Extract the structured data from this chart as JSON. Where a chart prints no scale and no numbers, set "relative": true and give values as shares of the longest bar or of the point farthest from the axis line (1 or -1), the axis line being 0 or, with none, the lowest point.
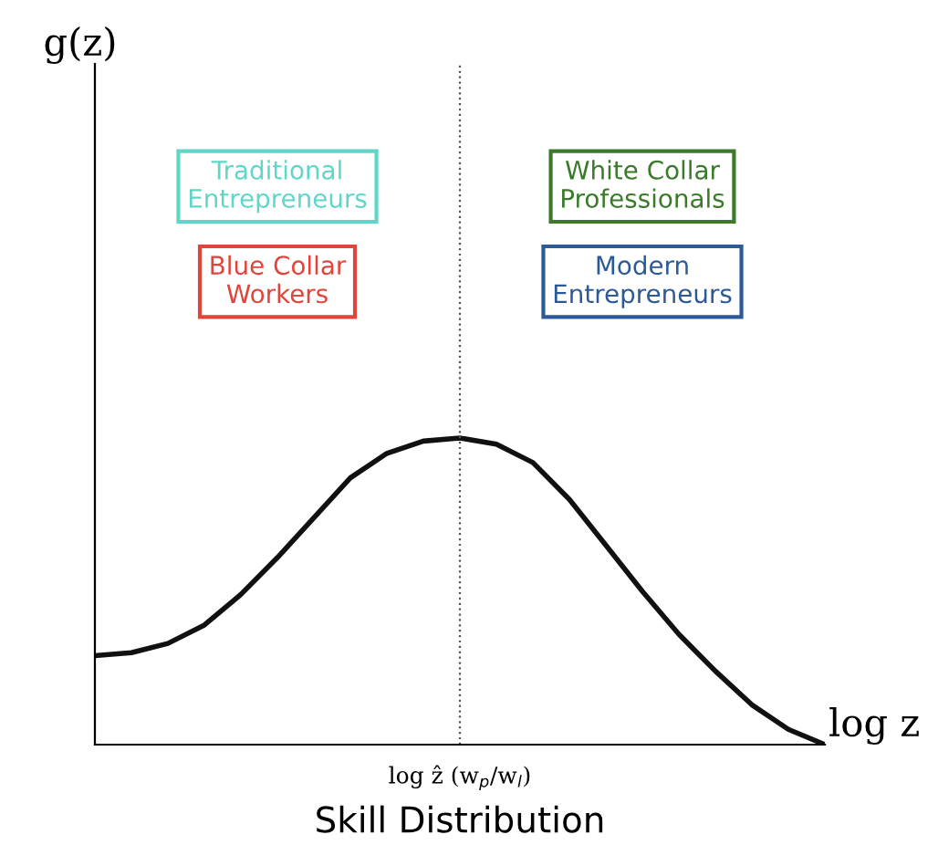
{
  "chart_data": {
    "type": "line",
    "relative": true,
    "xlabel": "Skill Distribution",
    "categories": [
      null,
      null,
      null,
      null,
      null,
      null,
      null,
      null,
      null,
      null,
      null,
      null,
      null,
      null,
      null,
      null,
      null,
      null,
      null,
      null,
      null
    ],
    "series": [
      {
        "color": "#111111",
        "values": [
          0.29,
          0.3,
          0.33,
          0.39,
          0.49,
          0.61,
          0.74,
          0.87,
          0.95,
          0.99,
          1.0,
          0.98,
          0.92,
          0.8,
          0.65,
          0.5,
          0.36,
          0.24,
          0.13,
          0.05,
          0.0
        ]
      }
    ],
    "annotations": [
      "Traditional\nEntrepreneurs",
      "Blue Collar\nWorkers",
      "White Collar\nProfessionals",
      "Modern\nEntrepreneurs",
      "log z",
      "log ẑ (w$_{p}$/w$_{l}$)",
      "g(z)"
    ],
    "marker": "none",
    "line_style": "solid",
    "legend": false
  }
}
